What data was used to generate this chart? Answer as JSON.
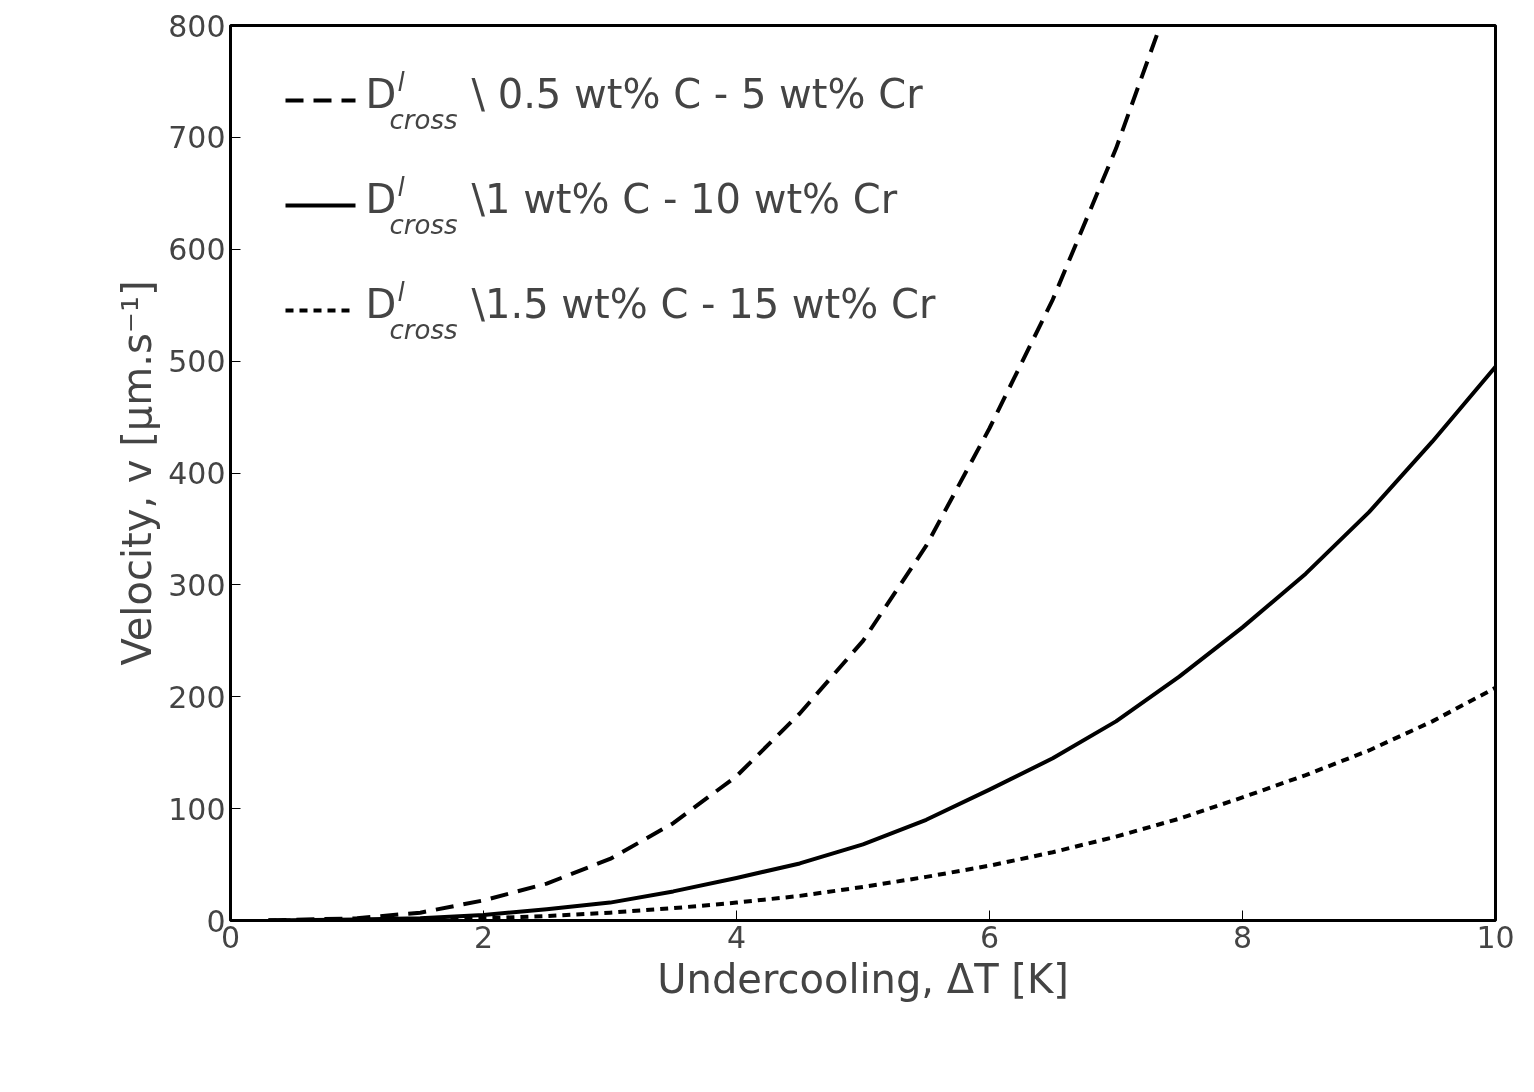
{
  "chart_data": {
    "type": "line",
    "xlabel": "Undercooling, ΔT [K]",
    "ylabel": "Velocity, v [μm.s⁻¹]",
    "xlim": [
      0,
      10
    ],
    "ylim": [
      0,
      800
    ],
    "xticks": [
      0,
      2,
      4,
      6,
      8,
      10
    ],
    "yticks": [
      0,
      100,
      200,
      300,
      400,
      500,
      600,
      700,
      800
    ],
    "grid": false,
    "legend": "top left",
    "series": [
      {
        "name": "D$^{l}$$_{cross}$\\ 0.5 wt% C - 5 wt% Cr",
        "color": "#000000",
        "line_style": "dashed",
        "x": [
          0.3,
          1,
          1.5,
          2,
          2.5,
          3,
          3.5,
          4,
          4.5,
          5,
          5.5,
          6,
          6.5,
          7,
          7.35
        ],
        "values": [
          0,
          2,
          7,
          18,
          33,
          55,
          87,
          129,
          185,
          250,
          335,
          440,
          555,
          690,
          800
        ]
      },
      {
        "name": "D$^{l}$$_{cross}$\\1 wt% C - 10 wt% Cr",
        "color": "#000000",
        "line_style": "solid",
        "x": [
          0.3,
          1,
          1.5,
          2,
          2.5,
          3,
          3.5,
          4,
          4.5,
          5,
          5.5,
          6,
          6.5,
          7,
          7.5,
          8,
          8.5,
          9,
          9.5,
          10
        ],
        "values": [
          0,
          1,
          2,
          5,
          10,
          16,
          26,
          38,
          51,
          68,
          90,
          117,
          145,
          178,
          218,
          262,
          310,
          365,
          428,
          495
        ]
      },
      {
        "name": "D$^{l}$$_{cross}$\\1.5 wt% C - 15 wt% Cr",
        "color": "#000000",
        "line_style": "dotted",
        "x": [
          0.3,
          1,
          1.5,
          2,
          2.5,
          3,
          3.5,
          4,
          4.5,
          5,
          5.5,
          6,
          6.5,
          7,
          7.5,
          8,
          8.5,
          9,
          9.5,
          10
        ],
        "values": [
          0,
          0,
          1,
          2,
          4,
          7,
          11,
          16,
          22,
          30,
          39,
          49,
          61,
          75,
          91,
          110,
          130,
          152,
          178,
          208
        ]
      }
    ]
  }
}
